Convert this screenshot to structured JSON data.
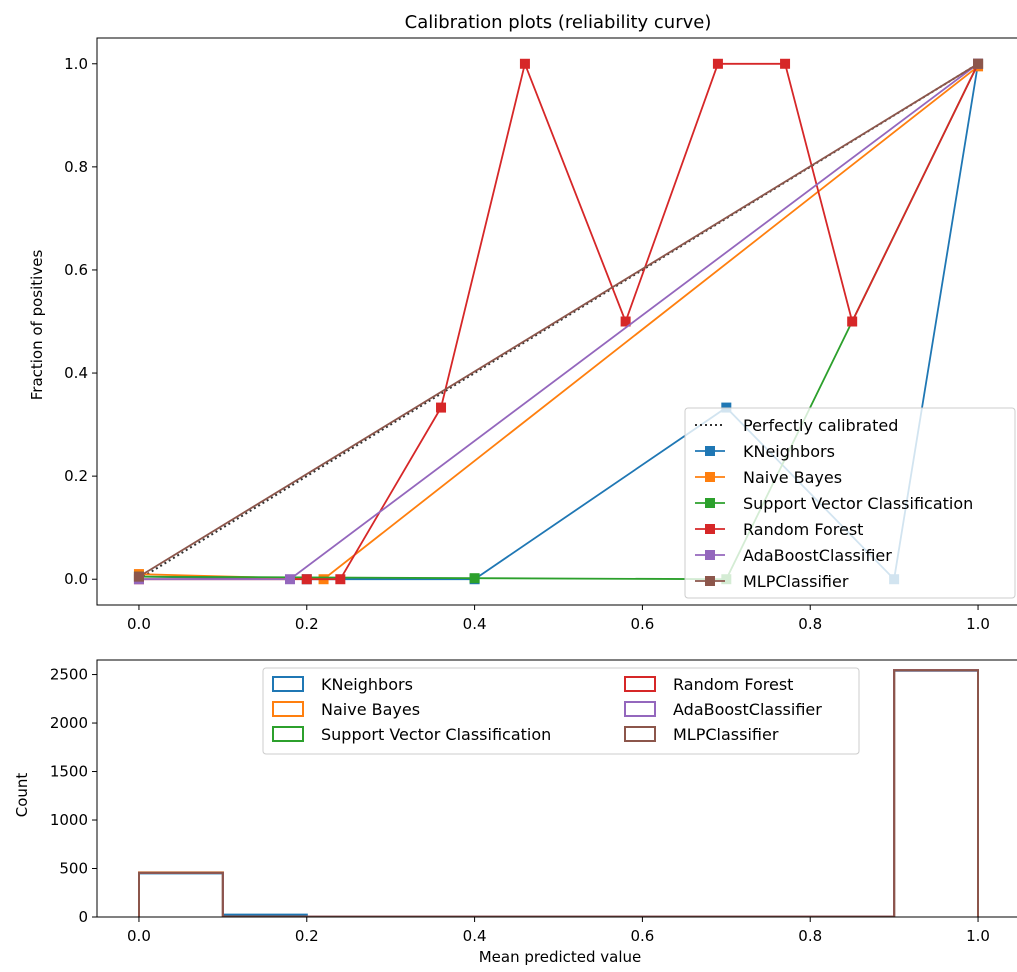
{
  "chart_data": [
    {
      "type": "line",
      "title": "Calibration plots  (reliability curve)",
      "xlabel": "",
      "ylabel": "Fraction of positives",
      "xlim": [
        -0.05,
        1.05
      ],
      "ylim": [
        -0.05,
        1.05
      ],
      "xticks": [
        "0.0",
        "0.2",
        "0.4",
        "0.6",
        "0.8",
        "1.0"
      ],
      "yticks": [
        "0.0",
        "0.2",
        "0.4",
        "0.6",
        "0.8",
        "1.0"
      ],
      "grid": false,
      "legend_position": "lower-right",
      "reference": {
        "name": "Perfectly calibrated",
        "color": "#333333",
        "x": [
          0,
          1
        ],
        "y": [
          0,
          1
        ]
      },
      "series": [
        {
          "name": "KNeighbors",
          "color": "#1f77b4",
          "x": [
            0.0,
            0.2,
            0.4,
            0.7,
            0.9,
            1.0
          ],
          "y": [
            0.005,
            0.0,
            0.0,
            0.333,
            0.0,
            1.0
          ]
        },
        {
          "name": "Naive Bayes",
          "color": "#ff7f0e",
          "x": [
            0.0,
            0.22,
            1.0
          ],
          "y": [
            0.01,
            0.0,
            0.995
          ]
        },
        {
          "name": "Support Vector Classification",
          "color": "#2ca02c",
          "x": [
            0.0,
            0.4,
            0.7,
            1.0
          ],
          "y": [
            0.005,
            0.002,
            0.0,
            1.0
          ]
        },
        {
          "name": "Random Forest",
          "color": "#d62728",
          "x": [
            0.0,
            0.2,
            0.24,
            0.36,
            0.46,
            0.58,
            0.69,
            0.77,
            0.85,
            1.0
          ],
          "y": [
            0.0,
            0.0,
            0.0,
            0.333,
            1.0,
            0.5,
            1.0,
            1.0,
            0.5,
            1.0
          ]
        },
        {
          "name": "AdaBoostClassifier",
          "color": "#9467bd",
          "x": [
            0.0,
            0.18,
            1.0
          ],
          "y": [
            0.0,
            0.0,
            1.0
          ]
        },
        {
          "name": "MLPClassifier",
          "color": "#8c564b",
          "x": [
            0.0,
            1.0
          ],
          "y": [
            0.005,
            1.0
          ]
        }
      ]
    },
    {
      "type": "histogram",
      "title": "",
      "xlabel": "Mean predicted value",
      "ylabel": "Count",
      "xlim": [
        -0.05,
        1.05
      ],
      "ylim": [
        0,
        2650
      ],
      "xticks": [
        "0.0",
        "0.2",
        "0.4",
        "0.6",
        "0.8",
        "1.0"
      ],
      "yticks": [
        "0",
        "500",
        "1000",
        "1500",
        "2000",
        "2500"
      ],
      "grid": false,
      "legend_position": "upper-center",
      "bin_edges": [
        0.0,
        0.1,
        0.2,
        0.3,
        0.4,
        0.5,
        0.6,
        0.7,
        0.8,
        0.9,
        1.0
      ],
      "series": [
        {
          "name": "KNeighbors",
          "color": "#1f77b4",
          "counts": [
            450,
            25,
            3,
            2,
            2,
            2,
            2,
            2,
            2,
            2540
          ]
        },
        {
          "name": "Naive Bayes",
          "color": "#ff7f0e",
          "counts": [
            460,
            5,
            3,
            2,
            2,
            2,
            2,
            2,
            2,
            2545
          ]
        },
        {
          "name": "Support Vector Classification",
          "color": "#2ca02c",
          "counts": [
            455,
            5,
            3,
            2,
            2,
            2,
            2,
            2,
            2,
            2545
          ]
        },
        {
          "name": "Random Forest",
          "color": "#d62728",
          "counts": [
            455,
            5,
            3,
            2,
            2,
            2,
            2,
            2,
            2,
            2545
          ]
        },
        {
          "name": "AdaBoostClassifier",
          "color": "#9467bd",
          "counts": [
            455,
            5,
            3,
            2,
            2,
            2,
            2,
            2,
            2,
            2545
          ]
        },
        {
          "name": "MLPClassifier",
          "color": "#8c564b",
          "counts": [
            455,
            5,
            3,
            2,
            2,
            2,
            2,
            2,
            2,
            2545
          ]
        }
      ]
    }
  ]
}
